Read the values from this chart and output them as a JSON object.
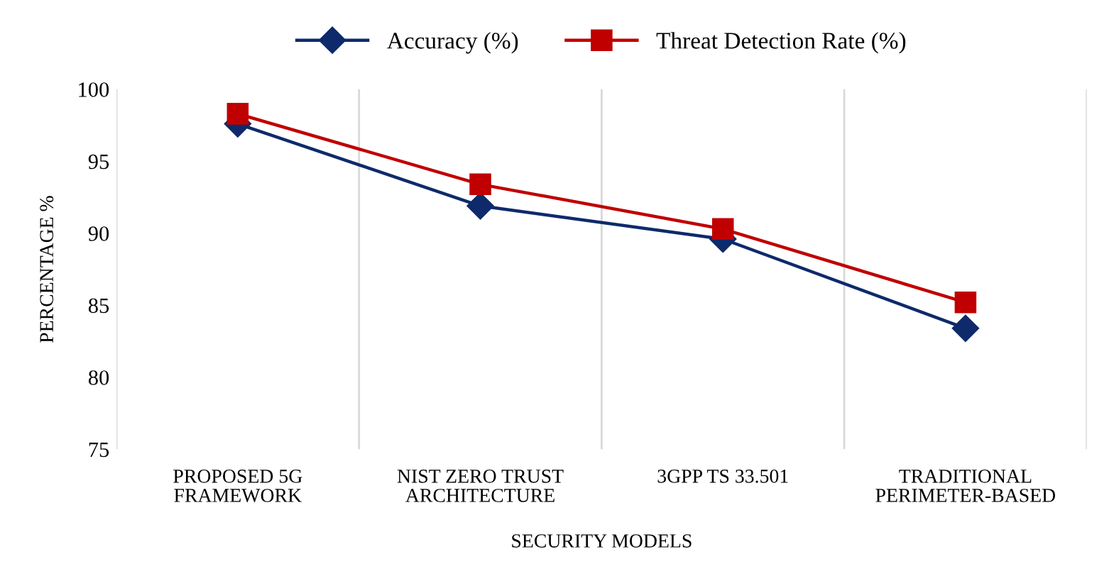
{
  "chart_data": {
    "type": "line",
    "xlabel": "SECURITY MODELS",
    "ylabel": "PERCENTAGE %",
    "categories": [
      "PROPOSED 5G\nFRAMEWORK",
      "NIST ZERO TRUST\nARCHITECTURE",
      "3GPP TS 33.501",
      "TRADITIONAL\nPERIMETER-BASED"
    ],
    "series": [
      {
        "name": "Accuracy (%)",
        "color": "#0e2a6b",
        "marker": "diamond",
        "values": [
          97.6,
          91.9,
          89.6,
          83.4
        ]
      },
      {
        "name": "Threat Detection Rate (%)",
        "color": "#c00000",
        "marker": "square",
        "values": [
          98.3,
          93.4,
          90.3,
          85.2
        ]
      }
    ],
    "ylim": [
      75,
      100
    ],
    "yticks": [
      75,
      80,
      85,
      90,
      95,
      100
    ],
    "grid": "x",
    "legend": "top",
    "line_style": "solid"
  }
}
